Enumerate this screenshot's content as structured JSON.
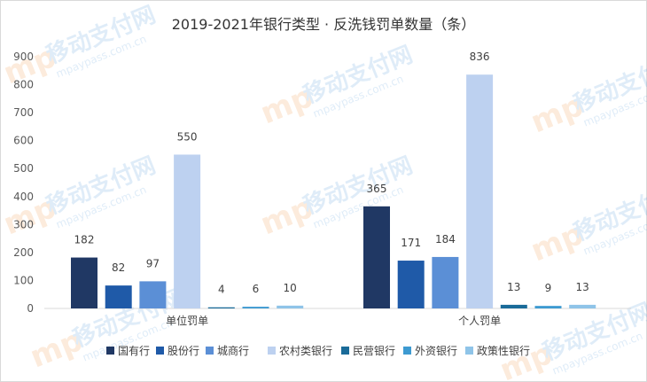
{
  "chart_data": {
    "type": "bar",
    "title": "2019-2021年银行类型 · 反洗钱罚单数量（条）",
    "categories": [
      "单位罚单",
      "个人罚单"
    ],
    "series": [
      {
        "name": "国有行",
        "values": [
          182,
          365
        ],
        "color": "#203864"
      },
      {
        "name": "股份行",
        "values": [
          82,
          171
        ],
        "color": "#1f5aa8"
      },
      {
        "name": "城商行",
        "values": [
          97,
          184
        ],
        "color": "#5b8fd6"
      },
      {
        "name": "农村类银行",
        "values": [
          550,
          836
        ],
        "color": "#bdd1f0"
      },
      {
        "name": "民营银行",
        "values": [
          4,
          13
        ],
        "color": "#1a6b99"
      },
      {
        "name": "外资银行",
        "values": [
          6,
          9
        ],
        "color": "#3d9ad1"
      },
      {
        "name": "政策性银行",
        "values": [
          10,
          13
        ],
        "color": "#8fc4e8"
      }
    ],
    "ylim": [
      0,
      900
    ],
    "yticks": [
      0,
      100,
      200,
      300,
      400,
      500,
      600,
      700,
      800,
      900
    ],
    "grid": false,
    "legend": "bottom"
  },
  "watermark": {
    "brand": "移动支付网",
    "url": "mpaypass.com.cn"
  }
}
